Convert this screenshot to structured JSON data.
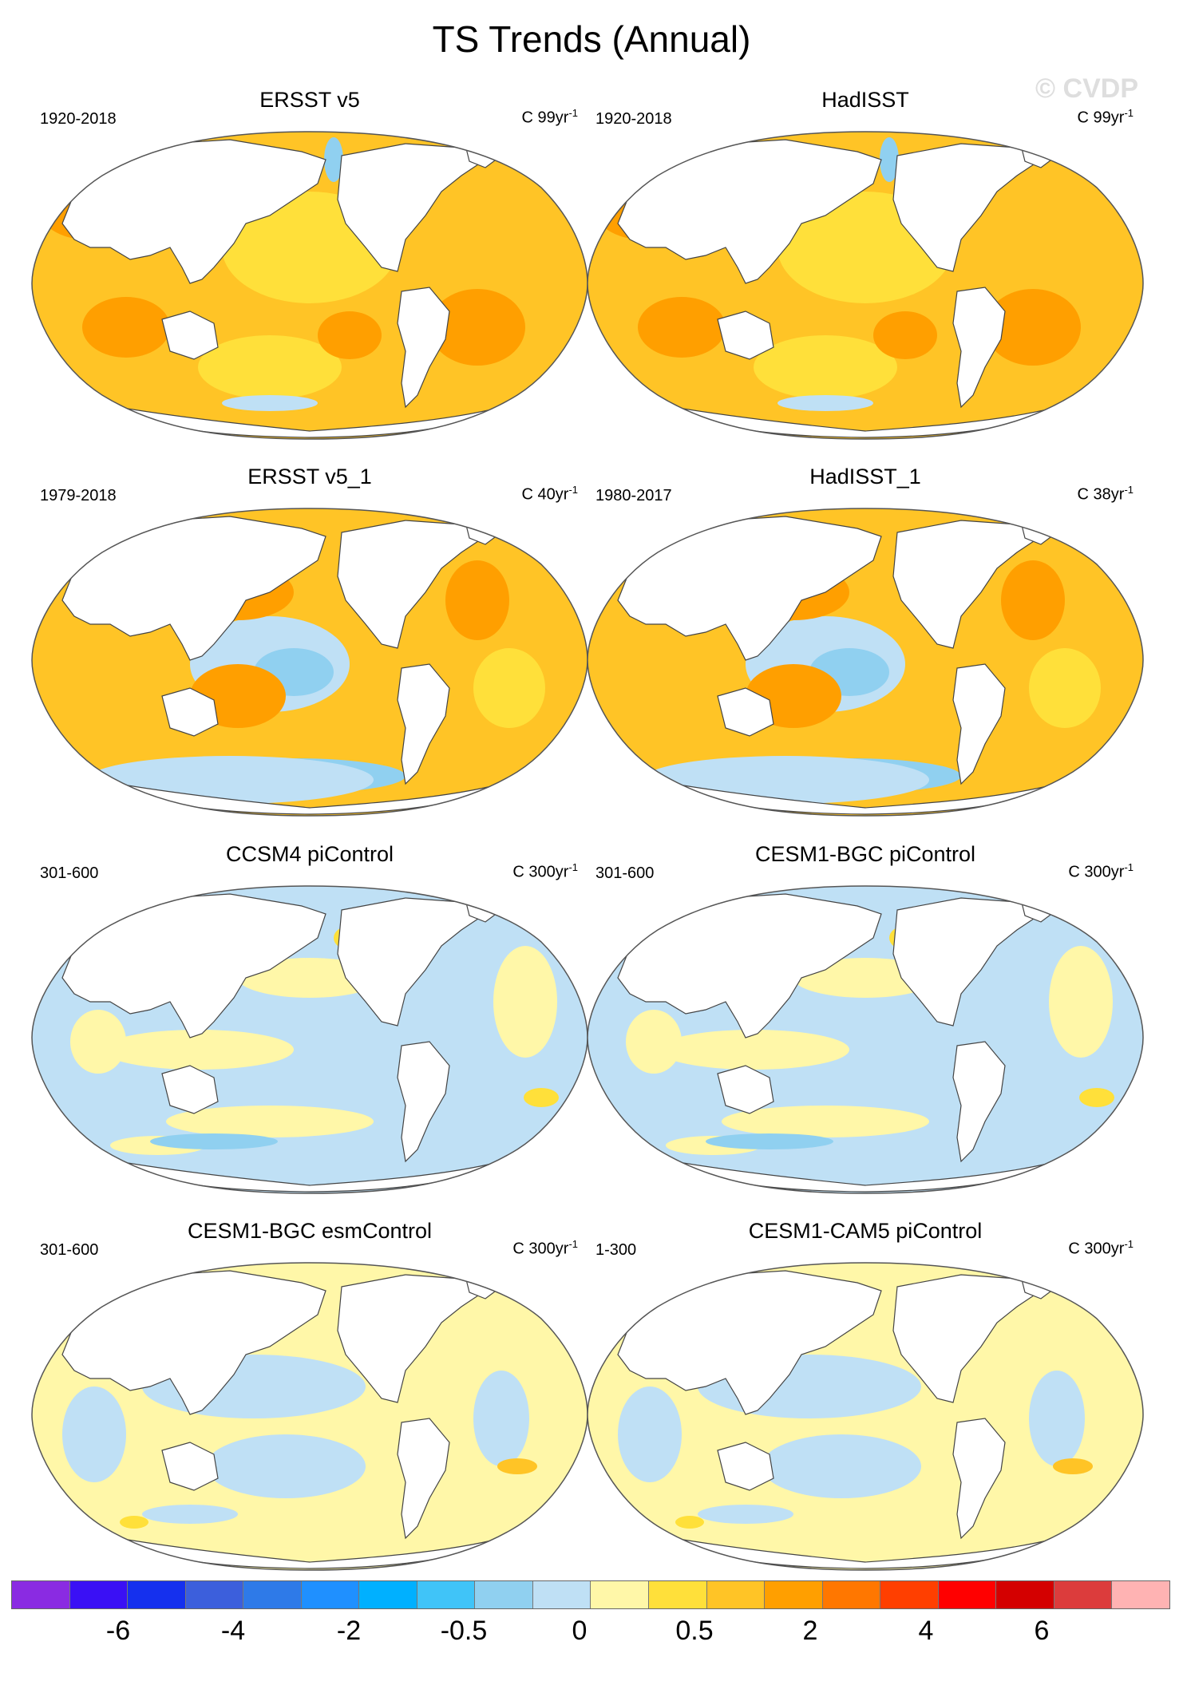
{
  "title": "TS Trends (Annual)",
  "watermark": "© CVDP",
  "panels": [
    {
      "title": "ERSST v5",
      "years": "1920-2018",
      "units_base": "C 99yr",
      "units_exp": "-1",
      "pattern": "warm-strong"
    },
    {
      "title": "HadISST",
      "years": "1920-2018",
      "units_base": "C 99yr",
      "units_exp": "-1",
      "pattern": "warm-strong"
    },
    {
      "title": "ERSST v5_1",
      "years": "1979-2018",
      "units_base": "C 40yr",
      "units_exp": "-1",
      "pattern": "warm-cool-east"
    },
    {
      "title": "HadISST_1",
      "years": "1980-2017",
      "units_base": "C 38yr",
      "units_exp": "-1",
      "pattern": "warm-cool-east"
    },
    {
      "title": "CCSM4 piControl",
      "years": "301-600",
      "units_base": "C 300yr",
      "units_exp": "-1",
      "pattern": "neutral-cool"
    },
    {
      "title": "CESM1-BGC piControl",
      "years": "301-600",
      "units_base": "C 300yr",
      "units_exp": "-1",
      "pattern": "neutral-cool"
    },
    {
      "title": "CESM1-BGC esmControl",
      "years": "301-600",
      "units_base": "C 300yr",
      "units_exp": "-1",
      "pattern": "neutral-warm"
    },
    {
      "title": "CESM1-CAM5 piControl",
      "years": "1-300",
      "units_base": "C 300yr",
      "units_exp": "-1",
      "pattern": "neutral-warm"
    }
  ],
  "colorbar": {
    "colors": [
      "#8a2be2",
      "#3a10f5",
      "#1530ee",
      "#3c5fdc",
      "#2e7ae8",
      "#1f90ff",
      "#00b0ff",
      "#40c4f8",
      "#90d0f0",
      "#bfe0f5",
      "#fff7a8",
      "#ffe03a",
      "#ffc426",
      "#ff9f00",
      "#ff7700",
      "#ff3f00",
      "#ff0000",
      "#d40000",
      "#dc3c3c",
      "#ffb3b3"
    ],
    "labels": [
      "-6",
      "-4",
      "-2",
      "-0.5",
      "0",
      "0.5",
      "2",
      "4",
      "6"
    ]
  }
}
